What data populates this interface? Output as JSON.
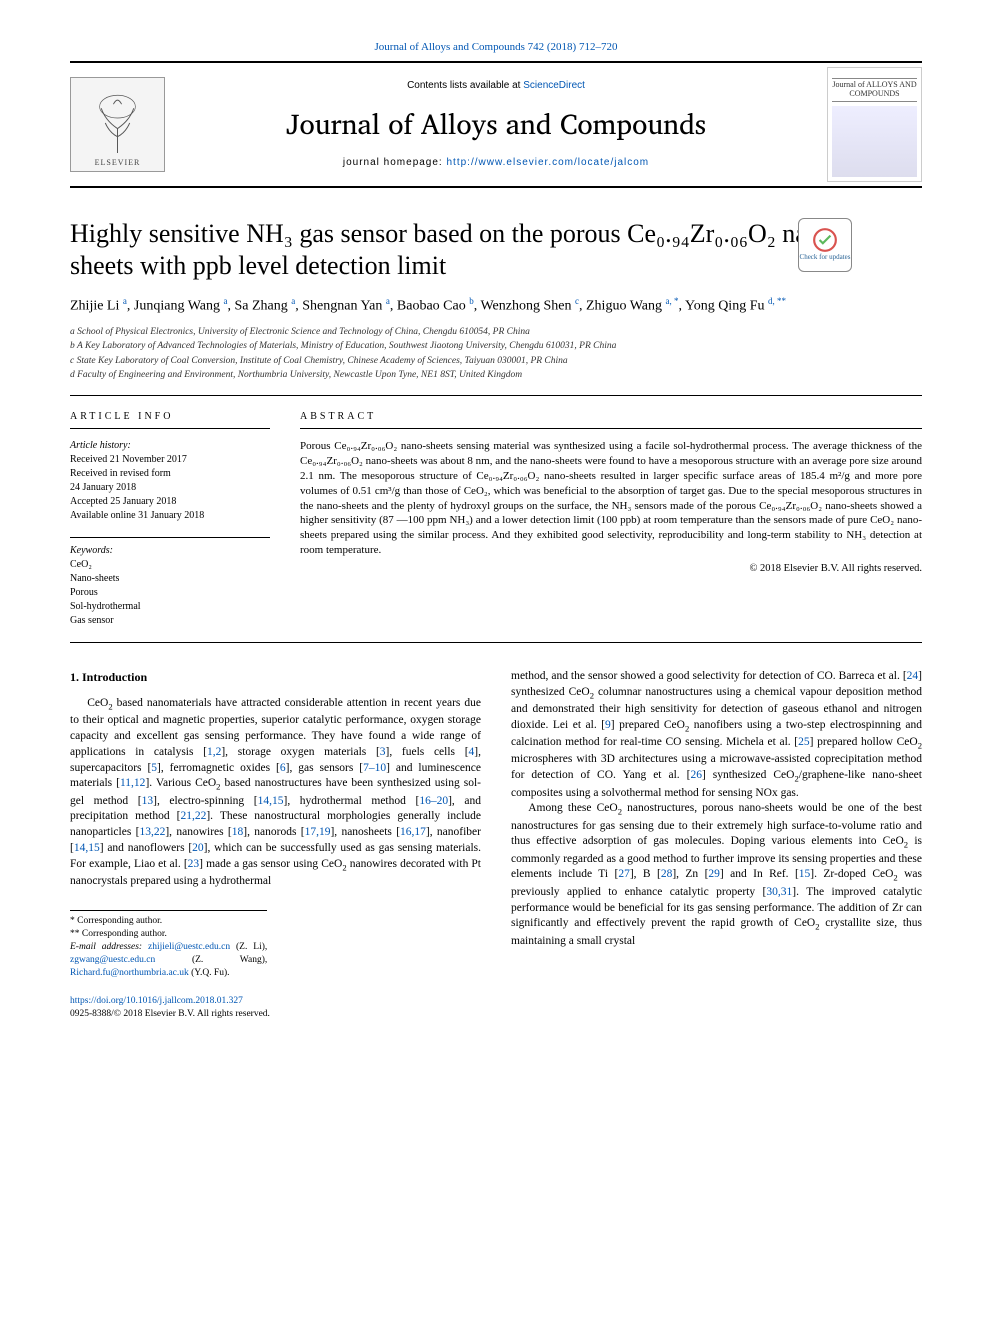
{
  "top_link": {
    "text": "Journal of Alloys and Compounds 742 (2018) 712–720",
    "color": "#0056b3"
  },
  "banner": {
    "publisher_logo_label": "ELSEVIER",
    "contents_prefix": "Contents lists available at ",
    "contents_link": "ScienceDirect",
    "journal_name": "Journal of Alloys and Compounds",
    "homepage_prefix": "journal homepage: ",
    "homepage_link": "http://www.elsevier.com/locate/jalcom",
    "cover_title": "Journal of ALLOYS AND COMPOUNDS"
  },
  "update_badge": {
    "label": "Check for updates"
  },
  "article": {
    "title": "Highly sensitive NH₃ gas sensor based on the porous Ce₀.₉₄Zr₀.₀₆O₂ nano-sheets with ppb level detection limit",
    "authors_html": "Zhijie Li <sup>a</sup>, Junqiang Wang <sup>a</sup>, Sa Zhang <sup>a</sup>, Shengnan Yan <sup>a</sup>, Baobao Cao <sup>b</sup>, Wenzhong Shen <sup>c</sup>, Zhiguo Wang <sup>a, *</sup>, Yong Qing Fu <sup>d, **</sup>",
    "affiliations": [
      "a School of Physical Electronics, University of Electronic Science and Technology of China, Chengdu 610054, PR China",
      "b A Key Laboratory of Advanced Technologies of Materials, Ministry of Education, Southwest Jiaotong University, Chengdu 610031, PR China",
      "c State Key Laboratory of Coal Conversion, Institute of Coal Chemistry, Chinese Academy of Sciences, Taiyuan 030001, PR China",
      "d Faculty of Engineering and Environment, Northumbria University, Newcastle Upon Tyne, NE1 8ST, United Kingdom"
    ]
  },
  "article_info": {
    "header": "ARTICLE INFO",
    "history_label": "Article history:",
    "history": [
      "Received 21 November 2017",
      "Received in revised form",
      "24 January 2018",
      "Accepted 25 January 2018",
      "Available online 31 January 2018"
    ],
    "keywords_label": "Keywords:",
    "keywords": [
      "CeO₂",
      "Nano-sheets",
      "Porous",
      "Sol-hydrothermal",
      "Gas sensor"
    ]
  },
  "abstract": {
    "header": "ABSTRACT",
    "body": "Porous Ce₀.₉₄Zr₀.₀₆O₂ nano-sheets sensing material was synthesized using a facile sol-hydrothermal process. The average thickness of the Ce₀.₉₄Zr₀.₀₆O₂ nano-sheets was about 8 nm, and the nano-sheets were found to have a mesoporous structure with an average pore size around 2.1 nm. The mesoporous structure of Ce₀.₉₄Zr₀.₀₆O₂ nano-sheets resulted in larger specific surface areas of 185.4 m²/g and more pore volumes of 0.51 cm³/g than those of CeO₂, which was beneficial to the absorption of target gas. Due to the special mesoporous structures in the nano-sheets and the plenty of hydroxyl groups on the surface, the NH₃ sensors made of the porous Ce₀.₉₄Zr₀.₀₆O₂ nano-sheets showed a higher sensitivity (87 —100 ppm NH₃) and a lower detection limit (100 ppb) at room temperature than the sensors made of pure CeO₂ nano-sheets prepared using the similar process. And they exhibited good selectivity, reproducibility and long-term stability to NH₃ detection at room temperature.",
    "copyright": "© 2018 Elsevier B.V. All rights reserved."
  },
  "intro": {
    "header": "1. Introduction",
    "col1_p1_html": "CeO<sub>2</sub> based nanomaterials have attracted considerable attention in recent years due to their optical and magnetic properties, superior catalytic performance, oxygen storage capacity and excellent gas sensing performance. They have found a wide range of applications in catalysis [<a class='ref'>1,2</a>], storage oxygen materials [<a class='ref'>3</a>], fuels cells [<a class='ref'>4</a>], supercapacitors [<a class='ref'>5</a>], ferromagnetic oxides [<a class='ref'>6</a>], gas sensors [<a class='ref'>7–10</a>] and luminescence materials [<a class='ref'>11,12</a>]. Various CeO<sub>2</sub> based nanostructures have been synthesized using sol-gel method [<a class='ref'>13</a>], electro-spinning [<a class='ref'>14,15</a>], hydrothermal method [<a class='ref'>16–20</a>], and precipitation method [<a class='ref'>21,22</a>]. These nanostructural morphologies generally include nanoparticles [<a class='ref'>13,22</a>], nanowires [<a class='ref'>18</a>], nanorods [<a class='ref'>17,19</a>], nanosheets [<a class='ref'>16,17</a>], nanofiber [<a class='ref'>14,15</a>] and nanoflowers [<a class='ref'>20</a>], which can be successfully used as gas sensing materials. For example, Liao et al. [<a class='ref'>23</a>] made a gas sensor using CeO<sub>2</sub> nanowires decorated with Pt nanocrystals prepared using a hydrothermal",
    "col2_p1_html": "method, and the sensor showed a good selectivity for detection of CO. Barreca et al. [<a class='ref'>24</a>] synthesized CeO<sub>2</sub> columnar nanostructures using a chemical vapour deposition method and demonstrated their high sensitivity for detection of gaseous ethanol and nitrogen dioxide. Lei et al. [<a class='ref'>9</a>] prepared CeO<sub>2</sub> nanofibers using a two-step electrospinning and calcination method for real-time CO sensing. Michela et al. [<a class='ref'>25</a>] prepared hollow CeO<sub>2</sub> microspheres with 3D architectures using a microwave-assisted coprecipitation method for detection of CO. Yang et al. [<a class='ref'>26</a>] synthesized CeO<sub>2</sub>/graphene-like nano-sheet composites using a solvothermal method for sensing NOx gas.",
    "col2_p2_html": "Among these CeO<sub>2</sub> nanostructures, porous nano-sheets would be one of the best nanostructures for gas sensing due to their extremely high surface-to-volume ratio and thus effective adsorption of gas molecules. Doping various elements into CeO<sub>2</sub> is commonly regarded as a good method to further improve its sensing properties and these elements include Ti [<a class='ref'>27</a>], B [<a class='ref'>28</a>], Zn [<a class='ref'>29</a>] and In Ref. [<a class='ref'>15</a>]. Zr-doped CeO<sub>2</sub> was previously applied to enhance catalytic property [<a class='ref'>30,31</a>]. The improved catalytic performance would be beneficial for its gas sensing performance. The addition of Zr can significantly and effectively prevent the rapid growth of CeO<sub>2</sub> crystallite size, thus maintaining a small crystal"
  },
  "footnotes": {
    "corr1": "* Corresponding author.",
    "corr2": "** Corresponding author.",
    "email_label": "E-mail addresses: ",
    "emails_html": "<a>zhijieli@uestc.edu.cn</a> (Z. Li), <a>zgwang@uestc.edu.cn</a> (Z. Wang), <a>Richard.fu@northumbria.ac.uk</a> (Y.Q. Fu)."
  },
  "doi": {
    "link": "https://doi.org/10.1016/j.jallcom.2018.01.327",
    "issn_line": "0925-8388/© 2018 Elsevier B.V. All rights reserved."
  },
  "colors": {
    "link": "#0056b3",
    "text": "#000000",
    "rule": "#000000",
    "background": "#ffffff"
  }
}
